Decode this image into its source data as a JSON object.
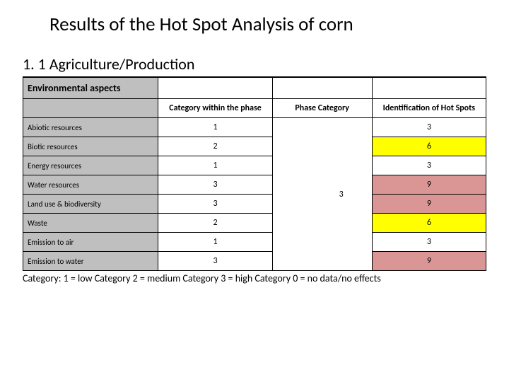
{
  "title": "Results of the Hot Spot Analysis of corn",
  "subtitle": "1. 1 Agriculture/Production",
  "headers": {
    "aspects": "Environmental aspects",
    "category_within": "Category within the phase",
    "phase_category": "Phase Category",
    "identification": "Identification of Hot Spots"
  },
  "phase_value": "3",
  "rows": [
    {
      "label": "Abiotic resources",
      "cat": "1",
      "id": "3",
      "id_bg": "#ffffff"
    },
    {
      "label": "Biotic resources",
      "cat": "2",
      "id": "6",
      "id_bg": "#ffff00"
    },
    {
      "label": "Energy resources",
      "cat": "1",
      "id": "3",
      "id_bg": "#ffffff"
    },
    {
      "label": "Water resources",
      "cat": "3",
      "id": "9",
      "id_bg": "#d99694"
    },
    {
      "label": "Land use & biodiversity",
      "cat": "3",
      "id": "9",
      "id_bg": "#d99694"
    },
    {
      "label": "Waste",
      "cat": "2",
      "id": "6",
      "id_bg": "#ffff00"
    },
    {
      "label": "Emission to air",
      "cat": "1",
      "id": "3",
      "id_bg": "#ffffff"
    },
    {
      "label": "Emission to water",
      "cat": "3",
      "id": "9",
      "id_bg": "#d99694"
    }
  ],
  "footer": "Category: 1 = low Category 2 = medium Category 3 = high Category 0 = no data/no effects"
}
